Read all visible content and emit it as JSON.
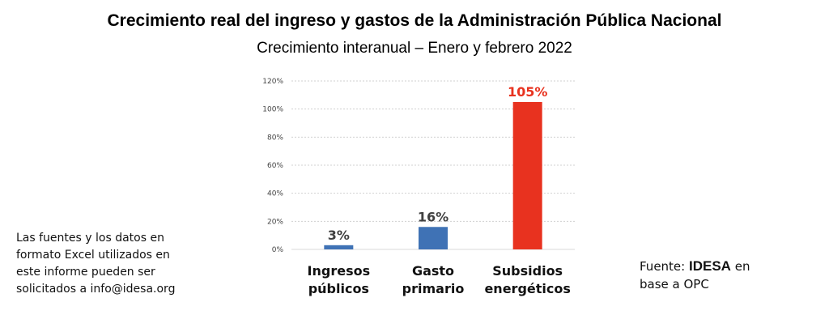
{
  "header": {
    "title": "Crecimiento real del ingreso y gastos de la Administración Pública Nacional",
    "subtitle": "Crecimiento interanual – Enero y febrero 2022"
  },
  "note": {
    "lines": [
      "Las fuentes y los datos en",
      "formato Excel utilizados en",
      "este informe pueden ser",
      "solicitados a info@idesa.org"
    ]
  },
  "source": {
    "prefix": "Fuente: ",
    "brand": "IDESA",
    "suffix": " en",
    "line2": "base a OPC"
  },
  "chart_data": {
    "type": "bar",
    "title": "Crecimiento interanual – Enero y febrero 2022",
    "categories": [
      [
        "Ingresos",
        "públicos"
      ],
      [
        "Gasto",
        "primario"
      ],
      [
        "Subsidios",
        "energéticos"
      ]
    ],
    "values": [
      3,
      16,
      105
    ],
    "data_labels": [
      "3%",
      "16%",
      "105%"
    ],
    "colors": [
      "#3f72b5",
      "#3f72b5",
      "#e8321f"
    ],
    "label_colors": [
      "#404040",
      "#404040",
      "#e8321f"
    ],
    "ylim": [
      0,
      120
    ],
    "yticks": [
      0,
      20,
      40,
      60,
      80,
      100,
      120
    ],
    "ytick_labels": [
      "0%",
      "20%",
      "40%",
      "60%",
      "80%",
      "100%",
      "120%"
    ],
    "grid": true,
    "xlabel": "",
    "ylabel": ""
  }
}
